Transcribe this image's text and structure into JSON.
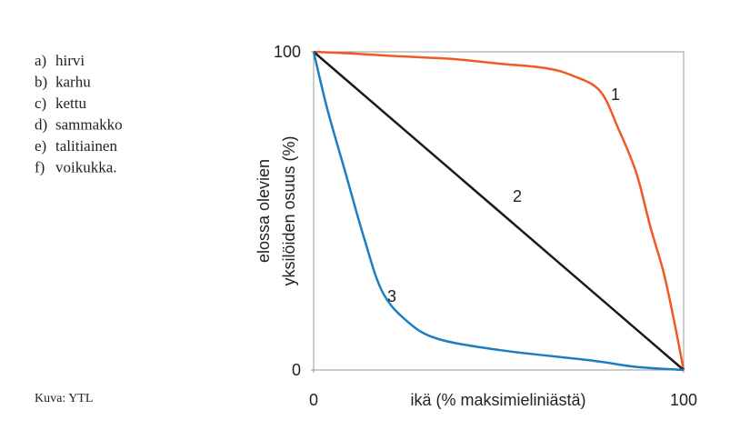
{
  "list": [
    {
      "letter": "a)",
      "text": "hirvi"
    },
    {
      "letter": "b)",
      "text": "karhu"
    },
    {
      "letter": "c)",
      "text": "kettu"
    },
    {
      "letter": "d)",
      "text": "sammakko"
    },
    {
      "letter": "e)",
      "text": "talitiainen"
    },
    {
      "letter": "f)",
      "text": "voikukka."
    }
  ],
  "credit": "Kuva: YTL",
  "chart_data": {
    "type": "line",
    "xlabel": "ikä (% maksimieliniästä)",
    "ylabel": [
      "elossa olevien",
      "yksilöiden osuus (%)"
    ],
    "xlim": [
      0,
      100
    ],
    "ylim": [
      0,
      100
    ],
    "xticks": [
      0,
      100
    ],
    "yticks": [
      0,
      100
    ],
    "series": [
      {
        "name": "1",
        "color": "#f05a22",
        "x": [
          0,
          10,
          20,
          30,
          38,
          50,
          62.6,
          70,
          77.4,
          82.3,
          87.2,
          91,
          94.6,
          97.5,
          100
        ],
        "values": [
          100,
          99.5,
          98.8,
          98.2,
          97.7,
          96.3,
          94.9,
          92.5,
          87.7,
          76,
          62,
          45,
          30.6,
          15,
          0
        ]
      },
      {
        "name": "2",
        "color": "#1a1a1a",
        "x": [
          0,
          100
        ],
        "values": [
          100,
          0
        ]
      },
      {
        "name": "3",
        "color": "#1a7fc1",
        "x": [
          0,
          3.7,
          8.6,
          13.5,
          18.4,
          24.6,
          33,
          50,
          75,
          87,
          100
        ],
        "values": [
          100,
          82,
          62,
          42,
          25,
          16,
          10,
          6.3,
          3,
          1,
          0
        ]
      }
    ]
  }
}
